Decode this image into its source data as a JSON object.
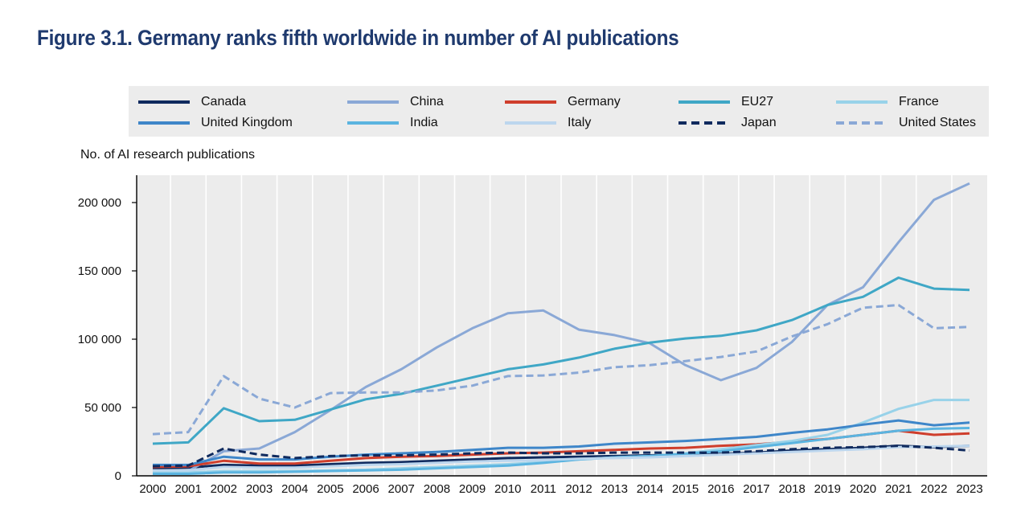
{
  "title": "Figure 3.1. Germany ranks fifth worldwide in number of AI publications",
  "chart_data": {
    "type": "line",
    "title": "Figure 3.1. Germany ranks fifth worldwide in number of AI publications",
    "ylabel": "No. of AI research publications",
    "xlabel": "",
    "ylim": [
      0,
      220000
    ],
    "yticks": [
      0,
      50000,
      100000,
      150000,
      200000
    ],
    "ytick_labels": [
      "0",
      "50 000",
      "100 000",
      "150 000",
      "200 000"
    ],
    "grid": "vertical",
    "legend_position": "top",
    "x": [
      "2000",
      "2001",
      "2002",
      "2003",
      "2004",
      "2005",
      "2006",
      "2007",
      "2008",
      "2009",
      "2010",
      "2011",
      "2012",
      "2013",
      "2014",
      "2015",
      "2016",
      "2017",
      "2018",
      "2019",
      "2020",
      "2021",
      "2022",
      "2023"
    ],
    "series": [
      {
        "name": "Canada",
        "color": "#0f2a5e",
        "dash": "solid",
        "values": [
          5500,
          6000,
          8000,
          7500,
          7500,
          8500,
          9500,
          10000,
          11000,
          12000,
          13000,
          13500,
          14000,
          14500,
          15000,
          15500,
          16000,
          17000,
          18500,
          19500,
          20500,
          22000,
          21000,
          22000
        ]
      },
      {
        "name": "China",
        "color": "#8aa8d6",
        "dash": "solid",
        "values": [
          3000,
          3500,
          18000,
          20000,
          32000,
          48000,
          65000,
          78000,
          94000,
          108000,
          119000,
          121000,
          107000,
          103000,
          97000,
          81000,
          70000,
          79000,
          98000,
          125000,
          138000,
          171000,
          202000,
          214000
        ]
      },
      {
        "name": "Germany",
        "color": "#cf3e2c",
        "dash": "solid",
        "values": [
          6500,
          7000,
          11000,
          9000,
          9000,
          11000,
          13000,
          14000,
          14500,
          15500,
          16500,
          17000,
          18000,
          19000,
          20000,
          20500,
          22000,
          23000,
          25000,
          27000,
          30000,
          33000,
          30000,
          31000
        ]
      },
      {
        "name": "EU27",
        "color": "#3fa7c6",
        "dash": "solid",
        "values": [
          23500,
          24500,
          49500,
          40000,
          41000,
          48500,
          56000,
          60000,
          66000,
          72000,
          78000,
          81500,
          86500,
          93000,
          97500,
          100500,
          102500,
          106500,
          114000,
          125000,
          131000,
          145000,
          137000,
          136000
        ]
      },
      {
        "name": "France",
        "color": "#98d2e9",
        "dash": "solid",
        "values": [
          2500,
          2500,
          3500,
          3500,
          3500,
          4000,
          4500,
          5500,
          6500,
          7500,
          8500,
          10000,
          12000,
          13500,
          14500,
          16500,
          19500,
          22500,
          25500,
          30000,
          39000,
          49000,
          55500,
          55500
        ]
      },
      {
        "name": "United Kingdom",
        "color": "#3e86c9",
        "dash": "solid",
        "values": [
          8000,
          8000,
          14000,
          12000,
          12000,
          14000,
          15500,
          16500,
          17500,
          19000,
          20500,
          20500,
          21500,
          23500,
          24500,
          25500,
          27000,
          28500,
          31500,
          34000,
          37500,
          40500,
          37000,
          39000
        ]
      },
      {
        "name": "India",
        "color": "#5bb4e0",
        "dash": "solid",
        "values": [
          1500,
          1500,
          2500,
          2500,
          3000,
          3500,
          4000,
          4500,
          5500,
          6500,
          7500,
          9500,
          12000,
          13500,
          14500,
          16000,
          18000,
          21000,
          24000,
          27000,
          30000,
          33000,
          34500,
          35000
        ]
      },
      {
        "name": "Italy",
        "color": "#bcd6ee",
        "dash": "solid",
        "values": [
          4000,
          4000,
          6500,
          6000,
          6000,
          7000,
          8000,
          8500,
          9500,
          10500,
          11000,
          11500,
          12500,
          13000,
          13500,
          14500,
          15500,
          16500,
          17500,
          18500,
          19500,
          21000,
          21500,
          22000
        ]
      },
      {
        "name": "Japan",
        "color": "#0f2a5e",
        "dash": "dashed",
        "values": [
          7000,
          7500,
          20000,
          15500,
          13000,
          14500,
          15000,
          15000,
          15500,
          16500,
          17000,
          16500,
          16500,
          17000,
          17000,
          17000,
          17000,
          18000,
          19500,
          20500,
          21000,
          22000,
          20500,
          18500
        ]
      },
      {
        "name": "United States",
        "color": "#8aa8d6",
        "dash": "dashed",
        "values": [
          30500,
          32000,
          73000,
          56500,
          50000,
          60500,
          61000,
          61000,
          62500,
          66000,
          73000,
          73500,
          75500,
          79500,
          81000,
          84000,
          87000,
          91000,
          102000,
          111000,
          123000,
          125000,
          108000,
          109000
        ]
      }
    ]
  }
}
